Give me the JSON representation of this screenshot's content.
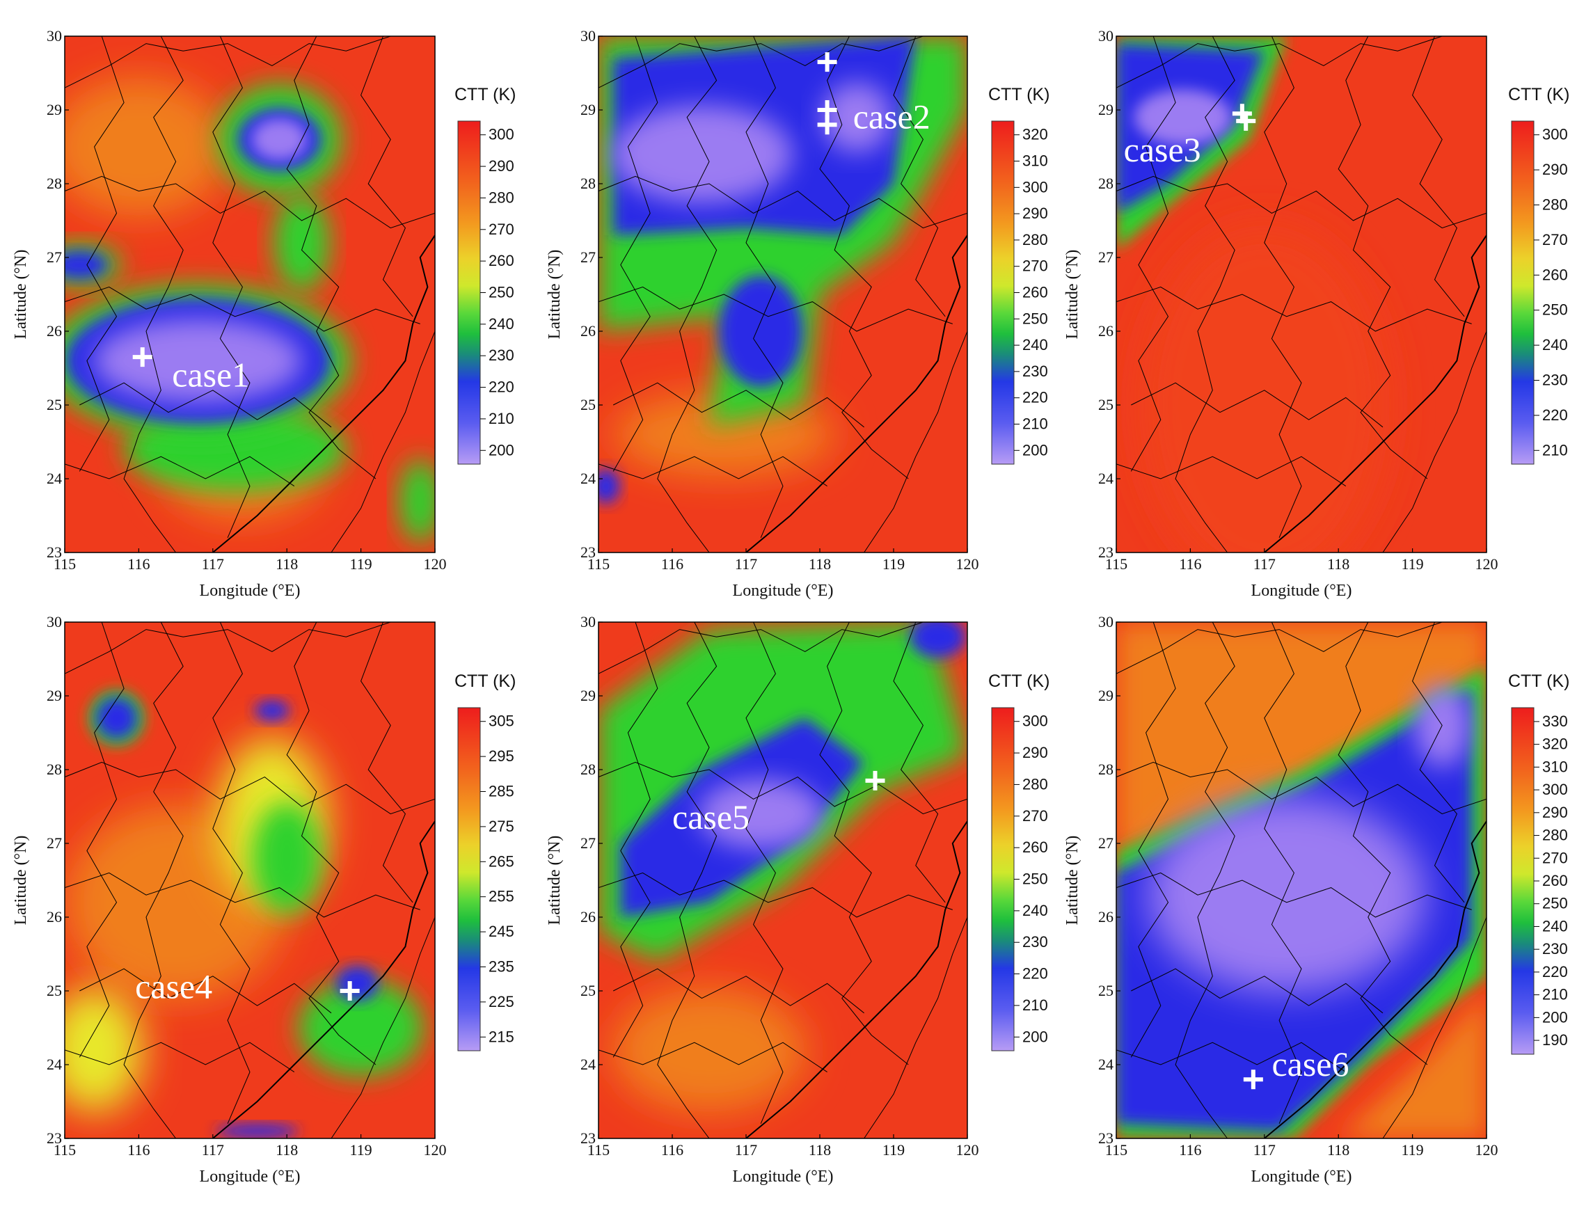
{
  "figure": {
    "x_axis_label": "Longitude (°E)",
    "y_axis_label": "Latitude (°N)",
    "x_ticks": [
      "115",
      "116",
      "117",
      "118",
      "119",
      "120"
    ],
    "y_ticks": [
      "23",
      "24",
      "25",
      "26",
      "27",
      "28",
      "29",
      "30"
    ],
    "colorbar_title": "CTT (K)"
  },
  "colors": {
    "warm": "#ef3b1c",
    "orange": "#f07e1e",
    "yellow": "#e8e82a",
    "green": "#2fd12f",
    "blue": "#2a2ae6",
    "cold": "#9b7cf2",
    "marker": "#ffffff",
    "boundaries": "#000000"
  },
  "panels": [
    {
      "case_label": "case1",
      "colorbar_ticks": [
        "300",
        "290",
        "280",
        "270",
        "260",
        "250",
        "240",
        "230",
        "220",
        "210",
        "200"
      ],
      "markers": [
        {
          "lon": 116.05,
          "lat": 25.65
        }
      ],
      "cold_clouds": [
        {
          "lon": 116.9,
          "lat": 25.6
        },
        {
          "lon": 117.9,
          "lat": 28.6
        },
        {
          "lon": 115.2,
          "lat": 26.9
        }
      ]
    },
    {
      "case_label": "case2",
      "colorbar_ticks": [
        "320",
        "310",
        "300",
        "290",
        "280",
        "270",
        "260",
        "250",
        "240",
        "230",
        "220",
        "210",
        "200"
      ],
      "markers": [
        {
          "lon": 118.1,
          "lat": 29.65
        },
        {
          "lon": 118.1,
          "lat": 29.0
        },
        {
          "lon": 118.1,
          "lat": 28.8
        }
      ],
      "cold_clouds": [
        {
          "lon": 116.6,
          "lat": 28.3
        },
        {
          "lon": 118.5,
          "lat": 28.9
        },
        {
          "lon": 117.3,
          "lat": 26.0
        }
      ]
    },
    {
      "case_label": "case3",
      "colorbar_ticks": [
        "300",
        "290",
        "280",
        "270",
        "260",
        "250",
        "240",
        "230",
        "220",
        "210"
      ],
      "markers": [
        {
          "lon": 116.7,
          "lat": 28.95
        },
        {
          "lon": 116.75,
          "lat": 28.85
        }
      ],
      "cold_clouds": [
        {
          "lon": 115.9,
          "lat": 28.9
        }
      ]
    },
    {
      "case_label": "case4",
      "colorbar_ticks": [
        "305",
        "295",
        "285",
        "275",
        "265",
        "255",
        "245",
        "235",
        "225",
        "215"
      ],
      "markers": [
        {
          "lon": 118.85,
          "lat": 25.0
        }
      ],
      "cold_clouds": [
        {
          "lon": 115.7,
          "lat": 28.7
        },
        {
          "lon": 118.95,
          "lat": 25.1
        }
      ]
    },
    {
      "case_label": "case5",
      "colorbar_ticks": [
        "300",
        "290",
        "280",
        "270",
        "260",
        "250",
        "240",
        "230",
        "220",
        "210",
        "200"
      ],
      "markers": [
        {
          "lon": 118.75,
          "lat": 27.85
        }
      ],
      "cold_clouds": [
        {
          "lon": 117.2,
          "lat": 27.3
        },
        {
          "lon": 119.6,
          "lat": 29.8
        }
      ]
    },
    {
      "case_label": "case6",
      "colorbar_ticks": [
        "330",
        "320",
        "310",
        "300",
        "290",
        "280",
        "270",
        "260",
        "250",
        "240",
        "230",
        "220",
        "210",
        "200",
        "190"
      ],
      "markers": [
        {
          "lon": 116.85,
          "lat": 23.8
        }
      ],
      "cold_clouds": [
        {
          "lon": 117.8,
          "lat": 26.0
        }
      ]
    }
  ]
}
